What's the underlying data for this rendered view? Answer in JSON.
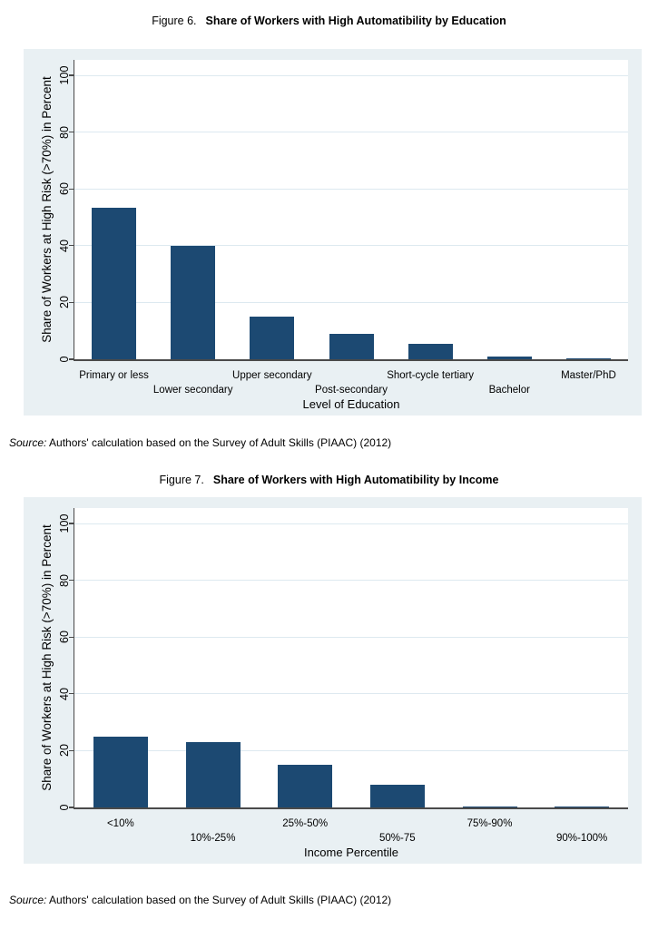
{
  "figures": [
    {
      "label": "Figure 6.",
      "title": "Share of Workers with High Automatibility by Education",
      "source_label": "Source:",
      "source_text": "Authors' calculation based on the Survey of Adult Skills (PIAAC) (2012)"
    },
    {
      "label": "Figure 7.",
      "title": "Share of Workers with High Automatibility by Income",
      "source_label": "Source:",
      "source_text": "Authors' calculation based on the Survey of Adult Skills (PIAAC) (2012)"
    }
  ],
  "chart_data": [
    {
      "type": "bar",
      "title": "Figure 6. Share of Workers with High Automatibility by Education",
      "categories": [
        "Primary or less",
        "Lower secondary",
        "Upper secondary",
        "Post-secondary",
        "Short-cycle tertiary",
        "Bachelor",
        "Master/PhD"
      ],
      "values": [
        53.5,
        40,
        15,
        9,
        5.5,
        0.8,
        0.3
      ],
      "xlabel": "Level of Education",
      "ylabel": "Share of Workers at High Risk (>70%) in Percent",
      "yticks": [
        0,
        20,
        40,
        60,
        80,
        100
      ],
      "ylim": [
        0,
        100
      ],
      "grid": true,
      "legend": false,
      "bar_color": "#1c4972",
      "plot_bg": "#ffffff",
      "region_bg": "#e9f0f3",
      "grid_color": "#dde9f0",
      "axis_color": "#4a4a4a"
    },
    {
      "type": "bar",
      "title": "Figure 7. Share of Workers with High Automatibility by Income",
      "categories": [
        "<10%",
        "10%-25%",
        "25%-50%",
        "50%-75",
        "75%-90%",
        "90%-100%"
      ],
      "values": [
        25,
        23,
        15,
        8,
        0.4,
        0.4
      ],
      "xlabel": "Income Percentile",
      "ylabel": "Share of Workers at High Risk (>70%) in Percent",
      "yticks": [
        0,
        20,
        40,
        60,
        80,
        100
      ],
      "ylim": [
        0,
        100
      ],
      "grid": true,
      "legend": false,
      "bar_color": "#1c4972",
      "plot_bg": "#ffffff",
      "region_bg": "#e9f0f3",
      "grid_color": "#dde9f0",
      "axis_color": "#4a4a4a"
    }
  ]
}
